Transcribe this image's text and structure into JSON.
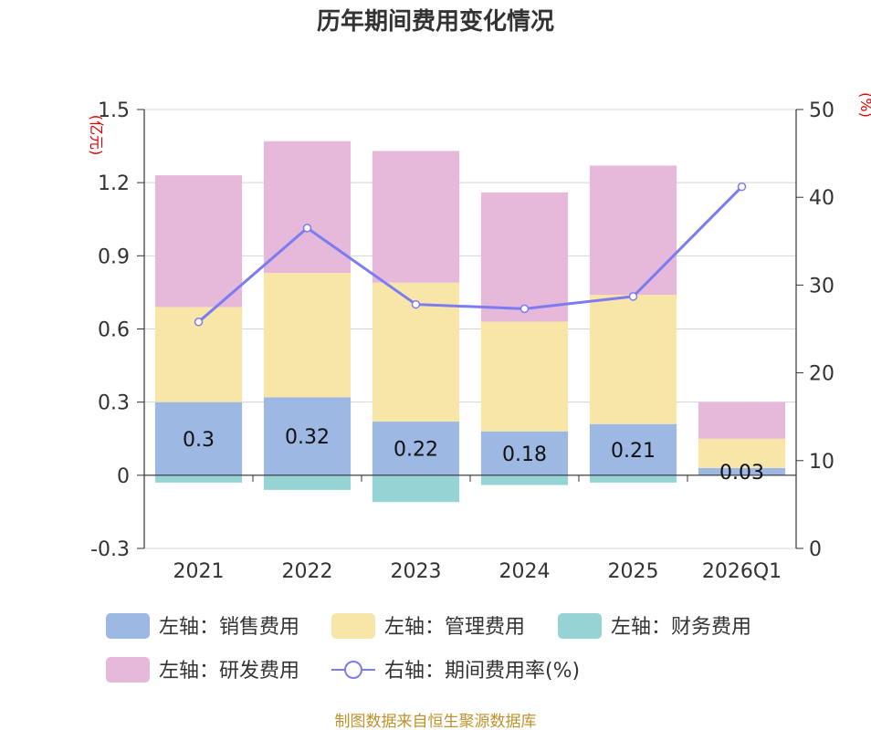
{
  "chart_data": {
    "type": "bar",
    "title": "历年期间费用变化情况",
    "categories": [
      "2021",
      "2022",
      "2023",
      "2024",
      "2025",
      "2026Q1"
    ],
    "left_axis": {
      "unit": "(亿元)",
      "ylim": [
        -0.3,
        1.5
      ],
      "ticks": [
        -0.3,
        0,
        0.3,
        0.6,
        0.9,
        1.2,
        1.5
      ],
      "tick_labels": [
        "-0.3",
        "0",
        "0.3",
        "0.6",
        "0.9",
        "1.2",
        "1.5"
      ]
    },
    "right_axis": {
      "unit": "(%)",
      "ylim": [
        0,
        50
      ],
      "ticks": [
        0,
        10,
        20,
        30,
        40,
        50
      ],
      "tick_labels": [
        "0",
        "10",
        "20",
        "30",
        "40",
        "50"
      ]
    },
    "series": [
      {
        "name": "左轴：销售费用",
        "axis": "left",
        "kind": "bar",
        "color": "#9cb8e3",
        "values": [
          0.3,
          0.32,
          0.22,
          0.18,
          0.21,
          0.03
        ],
        "labels": [
          "0.3",
          "0.32",
          "0.22",
          "0.18",
          "0.21",
          "0.03"
        ]
      },
      {
        "name": "左轴：管理费用",
        "axis": "left",
        "kind": "bar",
        "color": "#f8e6a8",
        "values": [
          0.39,
          0.51,
          0.57,
          0.45,
          0.53,
          0.12
        ]
      },
      {
        "name": "左轴：财务费用",
        "axis": "left",
        "kind": "bar",
        "color": "#95d3d4",
        "values": [
          -0.03,
          -0.06,
          -0.11,
          -0.04,
          -0.03,
          0
        ]
      },
      {
        "name": "左轴：研发费用",
        "axis": "left",
        "kind": "bar",
        "color": "#e6b8d9",
        "values": [
          0.54,
          0.54,
          0.54,
          0.53,
          0.53,
          0.15
        ]
      },
      {
        "name": "右轴：期间费用率(%)",
        "axis": "right",
        "kind": "line",
        "color": "#7b7cf2",
        "values": [
          25.8,
          36.5,
          27.8,
          27.3,
          28.7,
          41.2
        ]
      }
    ],
    "legend_position": "bottom",
    "grid": true
  },
  "source_text": "制图数据来自恒生聚源数据库"
}
